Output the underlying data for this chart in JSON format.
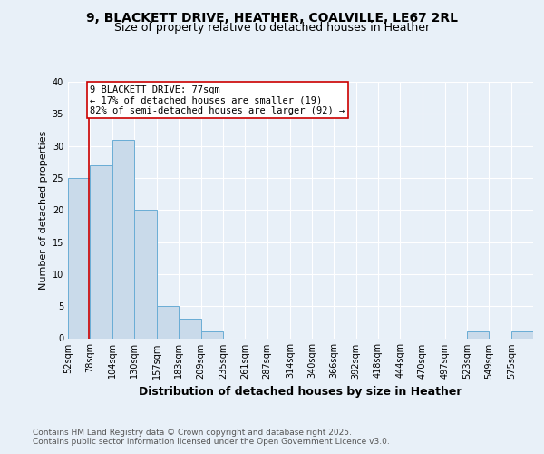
{
  "title1": "9, BLACKETT DRIVE, HEATHER, COALVILLE, LE67 2RL",
  "title2": "Size of property relative to detached houses in Heather",
  "xlabel": "Distribution of detached houses by size in Heather",
  "ylabel": "Number of detached properties",
  "bin_labels": [
    "52sqm",
    "78sqm",
    "104sqm",
    "130sqm",
    "157sqm",
    "183sqm",
    "209sqm",
    "235sqm",
    "261sqm",
    "287sqm",
    "314sqm",
    "340sqm",
    "366sqm",
    "392sqm",
    "418sqm",
    "444sqm",
    "470sqm",
    "497sqm",
    "523sqm",
    "549sqm",
    "575sqm"
  ],
  "bin_edges": [
    52,
    78,
    104,
    130,
    157,
    183,
    209,
    235,
    261,
    287,
    314,
    340,
    366,
    392,
    418,
    444,
    470,
    497,
    523,
    549,
    575,
    601
  ],
  "values": [
    25,
    27,
    31,
    20,
    5,
    3,
    1,
    0,
    0,
    0,
    0,
    0,
    0,
    0,
    0,
    0,
    0,
    0,
    1,
    0,
    1
  ],
  "bar_facecolor": "#c9daea",
  "bar_edgecolor": "#6aadd5",
  "property_line_x": 77,
  "property_line_color": "#cc0000",
  "annotation_text": "9 BLACKETT DRIVE: 77sqm\n← 17% of detached houses are smaller (19)\n82% of semi-detached houses are larger (92) →",
  "annotation_box_edgecolor": "#cc0000",
  "annotation_box_facecolor": "#ffffff",
  "ylim": [
    0,
    40
  ],
  "yticks": [
    0,
    5,
    10,
    15,
    20,
    25,
    30,
    35,
    40
  ],
  "footnote1": "Contains HM Land Registry data © Crown copyright and database right 2025.",
  "footnote2": "Contains public sector information licensed under the Open Government Licence v3.0.",
  "bg_color": "#e8f0f8",
  "plot_bg_color": "#e8f0f8",
  "grid_color": "#ffffff",
  "title_fontsize": 10,
  "subtitle_fontsize": 9,
  "xlabel_fontsize": 9,
  "ylabel_fontsize": 8,
  "tick_fontsize": 7,
  "annot_fontsize": 7.5,
  "footnote_fontsize": 6.5
}
